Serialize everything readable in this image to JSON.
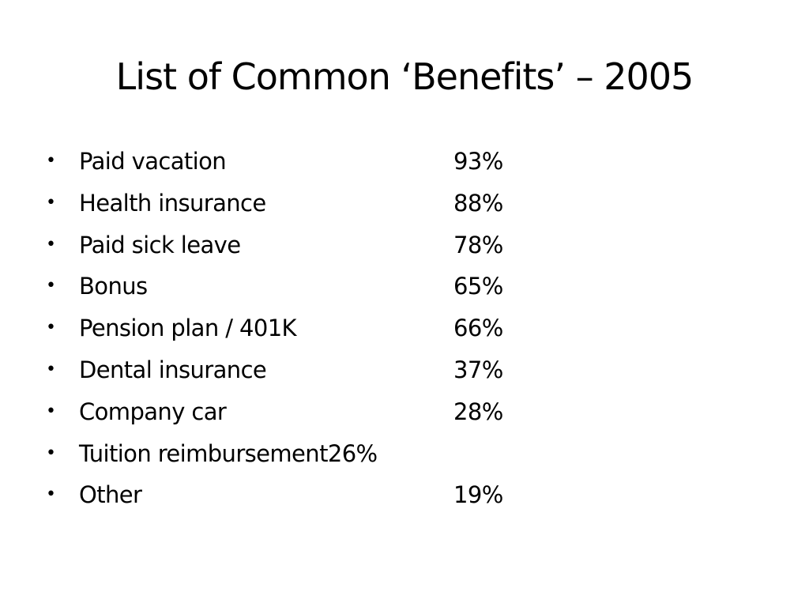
{
  "slide": {
    "title": "List of Common ‘Benefits’ – 2005",
    "bullet_glyph": "•",
    "items": [
      {
        "label": "Paid vacation",
        "percent": "93%"
      },
      {
        "label": "Health insurance",
        "percent": "88%"
      },
      {
        "label": "Paid sick leave",
        "percent": "78%"
      },
      {
        "label": "Bonus",
        "percent": "65%"
      },
      {
        "label": "Pension plan / 401K",
        "percent": "66%"
      },
      {
        "label": "Dental insurance",
        "percent": "37%"
      },
      {
        "label": "Company car",
        "percent": "28%"
      },
      {
        "label": "Tuition reimbursement26%",
        "percent": ""
      },
      {
        "label": "Other",
        "percent": "19%"
      }
    ]
  }
}
